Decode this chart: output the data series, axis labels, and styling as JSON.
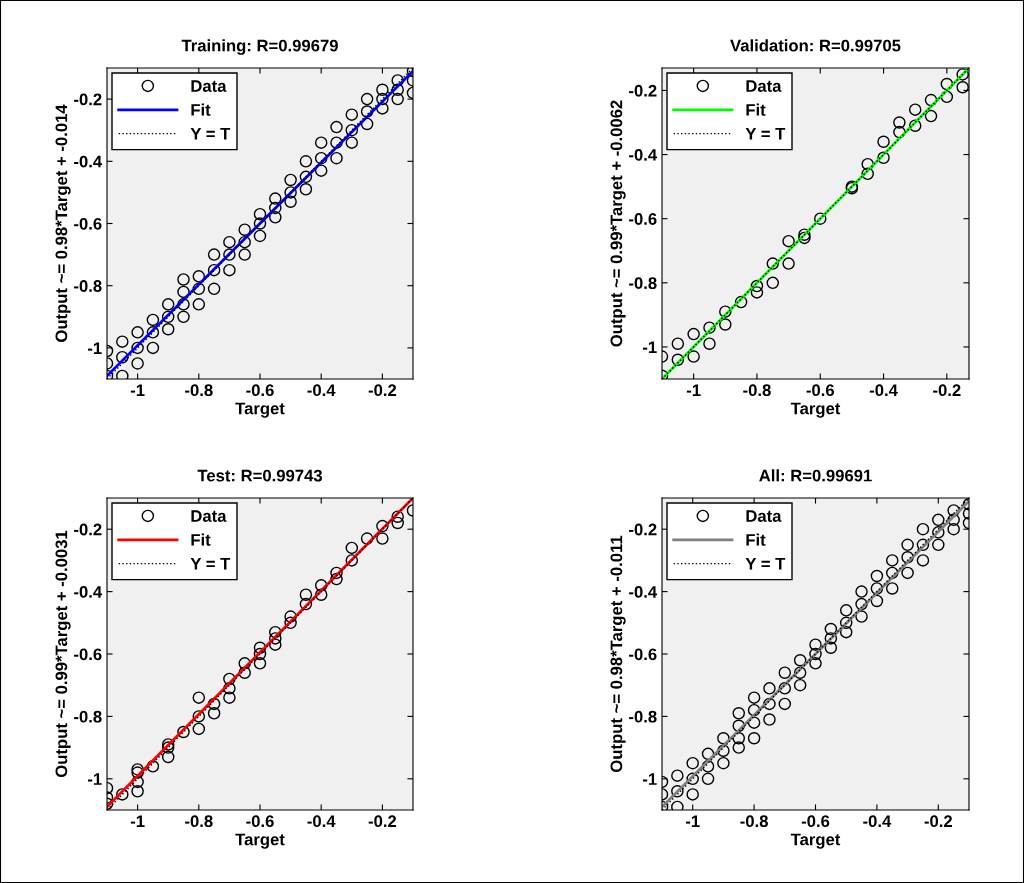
{
  "chart_data": [
    {
      "type": "scatter",
      "title": "Training: R=0.99679",
      "xlabel": "Target",
      "ylabel": "Output ~= 0.98*Target + -0.014",
      "xlim": [
        -1.1,
        -0.1
      ],
      "ylim": [
        -1.1,
        -0.1
      ],
      "xticks": [
        -1,
        -0.8,
        -0.6,
        -0.4,
        -0.2
      ],
      "yticks": [
        -1,
        -0.8,
        -0.6,
        -0.4,
        -0.2
      ],
      "legend": "top left",
      "series": [
        {
          "name": "Data",
          "type": "scatter",
          "marker": "circle",
          "color": "#000000",
          "x": [
            -1.1,
            -1.1,
            -1.1,
            -1.05,
            -1.05,
            -1.05,
            -1,
            -1,
            -1,
            -0.95,
            -0.95,
            -0.95,
            -0.9,
            -0.9,
            -0.9,
            -0.85,
            -0.85,
            -0.85,
            -0.85,
            -0.8,
            -0.8,
            -0.8,
            -0.75,
            -0.75,
            -0.75,
            -0.7,
            -0.7,
            -0.7,
            -0.65,
            -0.65,
            -0.65,
            -0.6,
            -0.6,
            -0.6,
            -0.55,
            -0.55,
            -0.55,
            -0.5,
            -0.5,
            -0.5,
            -0.45,
            -0.45,
            -0.45,
            -0.4,
            -0.4,
            -0.4,
            -0.35,
            -0.35,
            -0.35,
            -0.3,
            -0.3,
            -0.3,
            -0.25,
            -0.25,
            -0.25,
            -0.2,
            -0.2,
            -0.2,
            -0.15,
            -0.15,
            -0.15,
            -0.1,
            -0.1,
            -0.1
          ],
          "values": [
            -1.01,
            -1.05,
            -1.09,
            -0.98,
            -1.03,
            -1.09,
            -0.95,
            -1,
            -1.05,
            -0.91,
            -0.95,
            -1,
            -0.86,
            -0.9,
            -0.94,
            -0.78,
            -0.82,
            -0.86,
            -0.9,
            -0.77,
            -0.81,
            -0.86,
            -0.7,
            -0.75,
            -0.81,
            -0.66,
            -0.7,
            -0.75,
            -0.62,
            -0.66,
            -0.7,
            -0.57,
            -0.6,
            -0.64,
            -0.52,
            -0.55,
            -0.58,
            -0.46,
            -0.5,
            -0.53,
            -0.4,
            -0.45,
            -0.49,
            -0.34,
            -0.39,
            -0.43,
            -0.29,
            -0.34,
            -0.39,
            -0.25,
            -0.3,
            -0.34,
            -0.2,
            -0.24,
            -0.28,
            -0.17,
            -0.2,
            -0.23,
            -0.14,
            -0.17,
            -0.2,
            -0.11,
            -0.14,
            -0.18
          ]
        },
        {
          "name": "Fit",
          "type": "line",
          "color": "#0000ff",
          "x": [
            -1.1,
            -0.1
          ],
          "values": [
            -1.09,
            -0.11
          ]
        },
        {
          "name": "Y = T",
          "type": "line",
          "color": "#000000",
          "line_style": "dotted",
          "x": [
            -1.1,
            -0.1
          ],
          "values": [
            -1.1,
            -0.1
          ]
        }
      ]
    },
    {
      "type": "scatter",
      "title": "Validation: R=0.99705",
      "xlabel": "Target",
      "ylabel": "Output ~= 0.99*Target + -0.0062",
      "xlim": [
        -1.1,
        -0.13
      ],
      "ylim": [
        -1.1,
        -0.13
      ],
      "xticks": [
        -1,
        -0.8,
        -0.6,
        -0.4,
        -0.2
      ],
      "yticks": [
        -1,
        -0.8,
        -0.6,
        -0.4,
        -0.2
      ],
      "legend": "top left",
      "series": [
        {
          "name": "Data",
          "type": "scatter",
          "marker": "circle",
          "color": "#000000",
          "x": [
            -1.1,
            -1.1,
            -1.05,
            -1.05,
            -1,
            -1,
            -0.95,
            -0.95,
            -0.9,
            -0.9,
            -0.85,
            -0.8,
            -0.8,
            -0.75,
            -0.75,
            -0.7,
            -0.7,
            -0.65,
            -0.65,
            -0.6,
            -0.5,
            -0.5,
            -0.45,
            -0.45,
            -0.4,
            -0.4,
            -0.35,
            -0.35,
            -0.3,
            -0.3,
            -0.25,
            -0.25,
            -0.2,
            -0.2,
            -0.15,
            -0.15
          ],
          "values": [
            -1.03,
            -1.09,
            -0.99,
            -1.04,
            -0.96,
            -1.03,
            -0.94,
            -0.99,
            -0.89,
            -0.93,
            -0.86,
            -0.81,
            -0.83,
            -0.74,
            -0.8,
            -0.67,
            -0.74,
            -0.65,
            -0.66,
            -0.6,
            -0.5,
            -0.505,
            -0.43,
            -0.46,
            -0.36,
            -0.41,
            -0.3,
            -0.33,
            -0.26,
            -0.31,
            -0.23,
            -0.28,
            -0.18,
            -0.22,
            -0.15,
            -0.19
          ]
        },
        {
          "name": "Fit",
          "type": "line",
          "color": "#00ff00",
          "x": [
            -1.1,
            -0.13
          ],
          "values": [
            -1.1,
            -0.13
          ]
        },
        {
          "name": "Y = T",
          "type": "line",
          "color": "#000000",
          "line_style": "dotted",
          "x": [
            -1.1,
            -0.13
          ],
          "values": [
            -1.1,
            -0.13
          ]
        }
      ]
    },
    {
      "type": "scatter",
      "title": "Test: R=0.99743",
      "xlabel": "Target",
      "ylabel": "Output ~= 0.99*Target + -0.0031",
      "xlim": [
        -1.1,
        -0.1
      ],
      "ylim": [
        -1.1,
        -0.1
      ],
      "xticks": [
        -1,
        -0.8,
        -0.6,
        -0.4,
        -0.2
      ],
      "yticks": [
        -1,
        -0.8,
        -0.6,
        -0.4,
        -0.2
      ],
      "legend": "top left",
      "series": [
        {
          "name": "Data",
          "type": "scatter",
          "marker": "circle",
          "color": "#000000",
          "x": [
            -1.1,
            -1.1,
            -1.1,
            -1.05,
            -1,
            -1,
            -1,
            -1,
            -0.95,
            -0.9,
            -0.9,
            -0.9,
            -0.85,
            -0.8,
            -0.8,
            -0.8,
            -0.75,
            -0.75,
            -0.7,
            -0.7,
            -0.7,
            -0.65,
            -0.65,
            -0.6,
            -0.6,
            -0.6,
            -0.55,
            -0.55,
            -0.55,
            -0.5,
            -0.5,
            -0.45,
            -0.45,
            -0.4,
            -0.4,
            -0.35,
            -0.35,
            -0.3,
            -0.3,
            -0.25,
            -0.2,
            -0.2,
            -0.15,
            -0.15,
            -0.1
          ],
          "values": [
            -1.03,
            -1.06,
            -1.08,
            -1.05,
            -0.97,
            -0.98,
            -1.01,
            -1.04,
            -0.96,
            -0.89,
            -0.9,
            -0.93,
            -0.85,
            -0.74,
            -0.8,
            -0.84,
            -0.76,
            -0.79,
            -0.68,
            -0.71,
            -0.74,
            -0.63,
            -0.66,
            -0.58,
            -0.6,
            -0.63,
            -0.53,
            -0.55,
            -0.57,
            -0.48,
            -0.5,
            -0.41,
            -0.44,
            -0.38,
            -0.41,
            -0.34,
            -0.36,
            -0.26,
            -0.3,
            -0.23,
            -0.19,
            -0.23,
            -0.16,
            -0.18,
            -0.14
          ]
        },
        {
          "name": "Fit",
          "type": "line",
          "color": "#ff0000",
          "x": [
            -1.1,
            -0.1
          ],
          "values": [
            -1.09,
            -0.1
          ]
        },
        {
          "name": "Y = T",
          "type": "line",
          "color": "#000000",
          "line_style": "dotted",
          "x": [
            -1.1,
            -0.1
          ],
          "values": [
            -1.1,
            -0.1
          ]
        }
      ]
    },
    {
      "type": "scatter",
      "title": "All: R=0.99691",
      "xlabel": "Target",
      "ylabel": "Output ~= 0.98*Target + -0.011",
      "xlim": [
        -1.1,
        -0.1
      ],
      "ylim": [
        -1.1,
        -0.1
      ],
      "xticks": [
        -1,
        -0.8,
        -0.6,
        -0.4,
        -0.2
      ],
      "yticks": [
        -1,
        -0.8,
        -0.6,
        -0.4,
        -0.2
      ],
      "legend": "top left",
      "series": [
        {
          "name": "Data",
          "type": "scatter",
          "marker": "circle",
          "color": "#000000",
          "x": [
            -1.1,
            -1.1,
            -1.1,
            -1.05,
            -1.05,
            -1.05,
            -1,
            -1,
            -1,
            -0.95,
            -0.95,
            -0.95,
            -0.9,
            -0.9,
            -0.9,
            -0.85,
            -0.85,
            -0.85,
            -0.85,
            -0.8,
            -0.8,
            -0.8,
            -0.8,
            -0.75,
            -0.75,
            -0.75,
            -0.7,
            -0.7,
            -0.7,
            -0.65,
            -0.65,
            -0.65,
            -0.6,
            -0.6,
            -0.6,
            -0.55,
            -0.55,
            -0.55,
            -0.5,
            -0.5,
            -0.5,
            -0.45,
            -0.45,
            -0.45,
            -0.4,
            -0.4,
            -0.4,
            -0.35,
            -0.35,
            -0.35,
            -0.3,
            -0.3,
            -0.3,
            -0.25,
            -0.25,
            -0.25,
            -0.2,
            -0.2,
            -0.2,
            -0.15,
            -0.15,
            -0.15,
            -0.1,
            -0.1,
            -0.1
          ],
          "values": [
            -1.01,
            -1.05,
            -1.09,
            -0.99,
            -1.04,
            -1.09,
            -0.95,
            -1,
            -1.05,
            -0.92,
            -0.96,
            -1,
            -0.87,
            -0.91,
            -0.95,
            -0.79,
            -0.83,
            -0.87,
            -0.9,
            -0.74,
            -0.78,
            -0.82,
            -0.87,
            -0.71,
            -0.76,
            -0.81,
            -0.66,
            -0.71,
            -0.76,
            -0.62,
            -0.66,
            -0.7,
            -0.57,
            -0.6,
            -0.63,
            -0.52,
            -0.55,
            -0.58,
            -0.46,
            -0.5,
            -0.53,
            -0.4,
            -0.44,
            -0.48,
            -0.35,
            -0.39,
            -0.43,
            -0.3,
            -0.34,
            -0.39,
            -0.25,
            -0.29,
            -0.34,
            -0.2,
            -0.25,
            -0.3,
            -0.17,
            -0.21,
            -0.25,
            -0.14,
            -0.17,
            -0.2,
            -0.12,
            -0.15,
            -0.18
          ]
        },
        {
          "name": "Fit",
          "type": "line",
          "color": "#808080",
          "x": [
            -1.1,
            -0.1
          ],
          "values": [
            -1.09,
            -0.11
          ]
        },
        {
          "name": "Y = T",
          "type": "line",
          "color": "#000000",
          "line_style": "dotted",
          "x": [
            -1.1,
            -0.1
          ],
          "values": [
            -1.1,
            -0.1
          ]
        }
      ]
    }
  ]
}
